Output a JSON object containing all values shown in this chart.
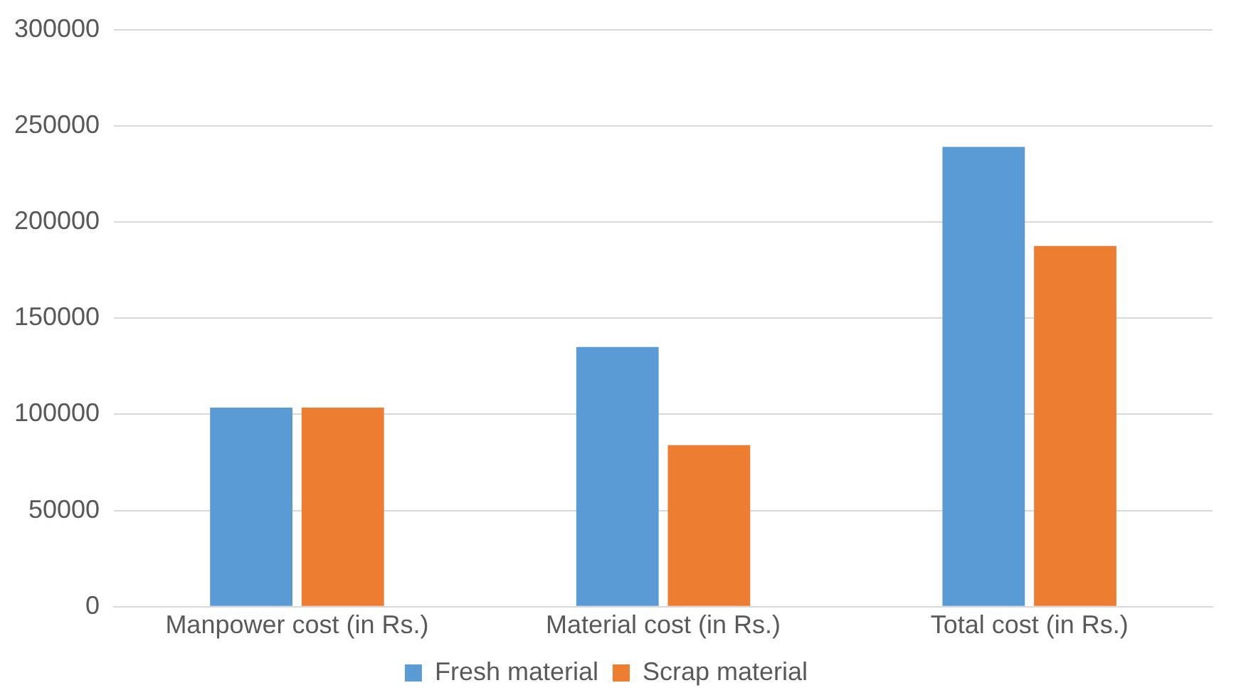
{
  "chart_data": {
    "type": "bar",
    "categories": [
      "Manpower cost (in Rs.)",
      "Material cost (in Rs.)",
      "Total cost (in Rs.)"
    ],
    "series": [
      {
        "name": "Fresh material",
        "color": "#5b9bd5",
        "values": [
          103500,
          135000,
          239000
        ]
      },
      {
        "name": "Scrap material",
        "color": "#ed7d31",
        "values": [
          103500,
          84000,
          187500
        ]
      }
    ],
    "ylim": [
      0,
      300000
    ],
    "yticks": [
      0,
      50000,
      100000,
      150000,
      200000,
      250000,
      300000
    ],
    "grid": "y",
    "legend": "bottom"
  }
}
